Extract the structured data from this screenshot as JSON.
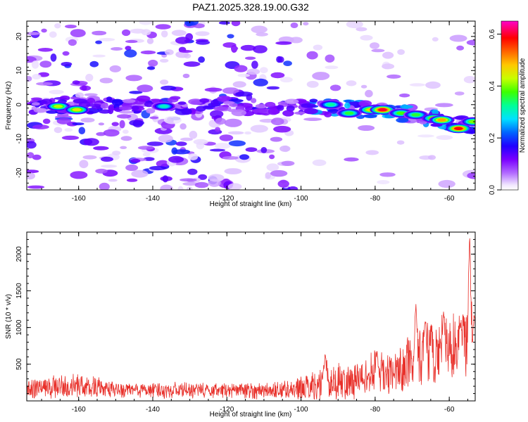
{
  "title": "PAZ1.2025.328.19.00.G32",
  "chart_data": [
    {
      "type": "heatmap",
      "xlabel": "Height of straight line (km)",
      "ylabel": "Frequency (Hz)",
      "xlim": [
        -174,
        -53
      ],
      "ylim": [
        -25,
        24.5
      ],
      "xticks": [
        -160,
        -140,
        -120,
        -100,
        -80,
        -60
      ],
      "xtick_labels": [
        "-160",
        "-140",
        "-120",
        "-100",
        "-80",
        "-60"
      ],
      "yticks": [
        -20,
        -10,
        0,
        10,
        20
      ],
      "ytick_labels": [
        "-20",
        "-10",
        "0",
        "10",
        "20"
      ],
      "colorbar": {
        "label": "Normalized spectral amplitude",
        "range": [
          0.0,
          0.65
        ],
        "ticks": [
          0.0,
          0.2,
          0.4,
          0.6
        ],
        "tick_labels": [
          "0.0",
          "0.2",
          "0.4",
          "0.6"
        ],
        "colors": [
          "#ffffff",
          "#e6d6ff",
          "#a55cff",
          "#7800ff",
          "#1e00ff",
          "#0064ff",
          "#00e1ff",
          "#00ff96",
          "#46ff00",
          "#c8ff00",
          "#ffc800",
          "#ff6400",
          "#ff0000",
          "#ff00c8"
        ]
      },
      "ridge": [
        {
          "x": -174,
          "y": 0.0
        },
        {
          "x": -100,
          "y": -0.5
        },
        {
          "x": -90,
          "y": -1.0
        },
        {
          "x": -80,
          "y": -1.5
        },
        {
          "x": -70,
          "y": -3.0
        },
        {
          "x": -60,
          "y": -5.0
        },
        {
          "x": -53,
          "y": -6.5
        }
      ],
      "hotspots": [
        {
          "x": -165.5,
          "y": -0.5,
          "value": 0.42
        },
        {
          "x": -160.5,
          "y": -1.5,
          "value": 0.45
        },
        {
          "x": -137,
          "y": -0.5,
          "value": 0.3
        },
        {
          "x": -92,
          "y": 0.0,
          "value": 0.32
        },
        {
          "x": -87,
          "y": -2.5,
          "value": 0.36
        },
        {
          "x": -81,
          "y": -1.5,
          "value": 0.48
        },
        {
          "x": -78,
          "y": -1.5,
          "value": 0.6
        },
        {
          "x": -73,
          "y": -2.5,
          "value": 0.38
        },
        {
          "x": -69,
          "y": -3.0,
          "value": 0.36
        },
        {
          "x": -64,
          "y": -4.0,
          "value": 0.46
        },
        {
          "x": -62,
          "y": -4.5,
          "value": 0.5
        },
        {
          "x": -57.5,
          "y": -7.0,
          "value": 0.58
        },
        {
          "x": -53.5,
          "y": -5.0,
          "value": 0.4
        }
      ]
    },
    {
      "type": "line",
      "xlabel": "Height of straight line (km)",
      "ylabel": "SNR (10 * v/v)",
      "xlim": [
        -174,
        -53
      ],
      "ylim": [
        0,
        2300
      ],
      "xticks": [
        -160,
        -140,
        -120,
        -100,
        -80,
        -60
      ],
      "xtick_labels": [
        "-160",
        "-140",
        "-120",
        "-100",
        "-80",
        "-60"
      ],
      "yticks": [
        500,
        1000,
        1500,
        2000
      ],
      "ytick_labels": [
        "500",
        "1000",
        "1500",
        "2000"
      ],
      "color": "#e8302a",
      "envelope": [
        {
          "x": -174,
          "mean": 160,
          "spread": 150
        },
        {
          "x": -160,
          "mean": 200,
          "spread": 200
        },
        {
          "x": -150,
          "mean": 150,
          "spread": 120
        },
        {
          "x": -110,
          "mean": 140,
          "spread": 120
        },
        {
          "x": -100,
          "mean": 170,
          "spread": 170
        },
        {
          "x": -93,
          "mean": 260,
          "spread": 300
        },
        {
          "x": -85,
          "mean": 280,
          "spread": 280
        },
        {
          "x": -80,
          "mean": 380,
          "spread": 350
        },
        {
          "x": -75,
          "mean": 350,
          "spread": 300
        },
        {
          "x": -70,
          "mean": 550,
          "spread": 500
        },
        {
          "x": -62,
          "mean": 700,
          "spread": 550
        },
        {
          "x": -56,
          "mean": 800,
          "spread": 550
        },
        {
          "x": -53,
          "mean": 750,
          "spread": 500
        }
      ],
      "peaks": [
        {
          "x": -93.5,
          "y": 650
        },
        {
          "x": -79.5,
          "y": 700
        },
        {
          "x": -69,
          "y": 1330
        },
        {
          "x": -66.5,
          "y": 1100
        },
        {
          "x": -61.5,
          "y": 1200
        },
        {
          "x": -57,
          "y": 1080
        },
        {
          "x": -54.5,
          "y": 2280
        },
        {
          "x": -53.3,
          "y": 1200
        }
      ]
    }
  ]
}
